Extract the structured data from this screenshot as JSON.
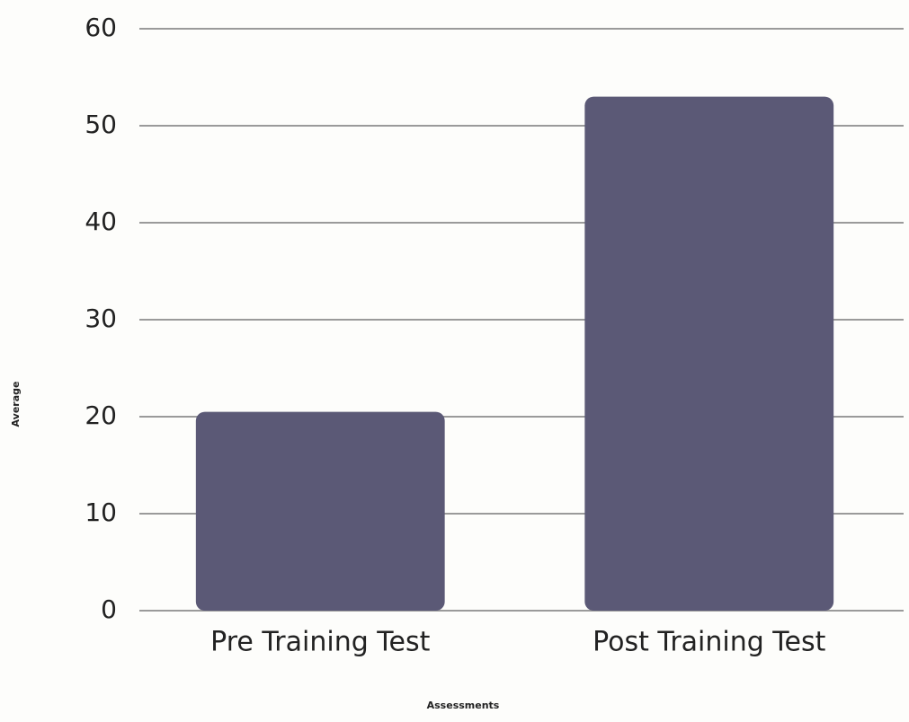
{
  "chart_data": {
    "type": "bar",
    "x_label": "Assessments",
    "y_label": "Average",
    "categories": [
      "Pre Training Test",
      "Post Training Test"
    ],
    "values": [
      20.5,
      53
    ],
    "color": "#5b5976",
    "ylim": [
      0,
      60
    ],
    "yticks": [
      0,
      10,
      20,
      30,
      40,
      50,
      60
    ],
    "grid": true
  }
}
